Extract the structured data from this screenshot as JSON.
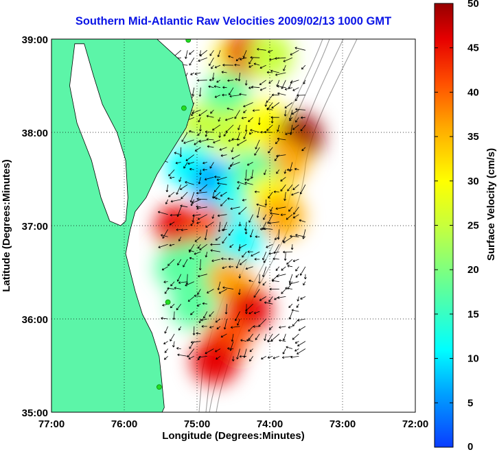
{
  "title": "Southern Mid-Atlantic Raw Velocities 2009/02/13 1000 GMT",
  "x_axis": {
    "label": "Longitude (Degrees:Minutes)",
    "ticks": [
      "77:00",
      "76:00",
      "75:00",
      "74:00",
      "73:00",
      "72:00"
    ]
  },
  "y_axis": {
    "label": "Latitude (Degrees:Minutes)",
    "ticks": [
      "39:00",
      "38:00",
      "37:00",
      "36:00",
      "35:00"
    ]
  },
  "colorbar": {
    "label": "Surface Velocity (cm/s)",
    "ticks": [
      "50",
      "45",
      "40",
      "35",
      "30",
      "25",
      "20",
      "15",
      "10",
      "5",
      "0"
    ],
    "range": [
      0,
      50
    ],
    "colormap": [
      "#0a3cff",
      "#00a0ff",
      "#00ffff",
      "#5affa0",
      "#c8ff3c",
      "#ffff00",
      "#ffaa00",
      "#ff5000",
      "#e60000",
      "#960000"
    ]
  },
  "colors": {
    "land": "#5cf5a8",
    "title": "#0a14e6",
    "bathymetry": "#a0a0a0",
    "station": "#22dd22"
  },
  "map": {
    "lon_range": [
      -77,
      -72
    ],
    "lat_range": [
      35,
      39
    ],
    "land_outline": [
      [
        -77.0,
        39.0
      ],
      [
        -75.55,
        39.0
      ],
      [
        -75.2,
        38.75
      ],
      [
        -75.1,
        38.45
      ],
      [
        -75.05,
        38.3
      ],
      [
        -75.15,
        38.05
      ],
      [
        -75.35,
        37.8
      ],
      [
        -75.55,
        37.55
      ],
      [
        -75.7,
        37.3
      ],
      [
        -75.85,
        37.15
      ],
      [
        -75.92,
        36.95
      ],
      [
        -75.98,
        36.7
      ],
      [
        -75.85,
        36.3
      ],
      [
        -75.75,
        36.05
      ],
      [
        -75.62,
        35.85
      ],
      [
        -75.52,
        35.6
      ],
      [
        -75.48,
        35.3
      ],
      [
        -75.45,
        35.05
      ],
      [
        -75.48,
        35.0
      ],
      [
        -77.0,
        35.0
      ]
    ],
    "bay_outline": [
      [
        -76.55,
        38.95
      ],
      [
        -76.42,
        38.6
      ],
      [
        -76.3,
        38.3
      ],
      [
        -76.1,
        38.0
      ],
      [
        -75.98,
        37.7
      ],
      [
        -75.95,
        37.3
      ],
      [
        -75.98,
        37.05
      ],
      [
        -76.05,
        37.0
      ],
      [
        -76.2,
        37.05
      ],
      [
        -76.32,
        37.3
      ],
      [
        -76.45,
        37.7
      ],
      [
        -76.65,
        38.1
      ],
      [
        -76.75,
        38.5
      ],
      [
        -76.68,
        38.95
      ]
    ],
    "stations": [
      [
        -75.12,
        38.99
      ],
      [
        -75.18,
        38.26
      ],
      [
        -75.4,
        36.18
      ],
      [
        -75.52,
        35.27
      ]
    ],
    "velocity_patches": [
      {
        "lon": -74.45,
        "lat": 38.78,
        "speed": 30
      },
      {
        "lon": -74.3,
        "lat": 38.85,
        "speed": 42
      },
      {
        "lon": -74.0,
        "lat": 38.82,
        "speed": 22
      },
      {
        "lon": -74.6,
        "lat": 38.4,
        "speed": 18
      },
      {
        "lon": -74.95,
        "lat": 38.05,
        "speed": 20
      },
      {
        "lon": -74.5,
        "lat": 38.0,
        "speed": 24
      },
      {
        "lon": -74.1,
        "lat": 38.1,
        "speed": 28
      },
      {
        "lon": -73.6,
        "lat": 37.95,
        "speed": 48
      },
      {
        "lon": -73.8,
        "lat": 37.7,
        "speed": 36
      },
      {
        "lon": -75.1,
        "lat": 37.65,
        "speed": 12
      },
      {
        "lon": -74.75,
        "lat": 37.45,
        "speed": 8
      },
      {
        "lon": -74.45,
        "lat": 37.35,
        "speed": 10
      },
      {
        "lon": -74.2,
        "lat": 37.55,
        "speed": 15
      },
      {
        "lon": -74.0,
        "lat": 37.3,
        "speed": 26
      },
      {
        "lon": -73.85,
        "lat": 37.1,
        "speed": 32
      },
      {
        "lon": -75.25,
        "lat": 36.98,
        "speed": 44
      },
      {
        "lon": -74.8,
        "lat": 36.95,
        "speed": 40
      },
      {
        "lon": -74.4,
        "lat": 36.85,
        "speed": 12
      },
      {
        "lon": -75.25,
        "lat": 36.55,
        "speed": 14
      },
      {
        "lon": -75.0,
        "lat": 36.6,
        "speed": 16
      },
      {
        "lon": -74.55,
        "lat": 36.4,
        "speed": 34
      },
      {
        "lon": -74.3,
        "lat": 36.1,
        "speed": 42
      },
      {
        "lon": -75.05,
        "lat": 36.15,
        "speed": 18
      },
      {
        "lon": -74.6,
        "lat": 35.8,
        "speed": 38
      },
      {
        "lon": -74.75,
        "lat": 35.55,
        "speed": 46
      }
    ]
  }
}
